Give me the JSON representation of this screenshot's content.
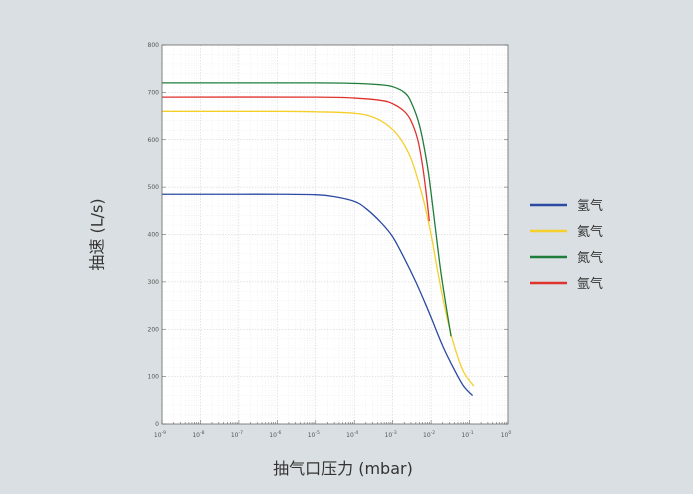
{
  "chart_data": {
    "type": "line",
    "title": "",
    "xlabel": "抽气口压力 (mbar)",
    "ylabel": "抽速 (L/s)",
    "x_scale": "log",
    "xlim": [
      1e-09,
      1
    ],
    "ylim": [
      0,
      800
    ],
    "x_ticks": [
      {
        "value": 1e-09,
        "base": "10",
        "exp": "-9"
      },
      {
        "value": 1e-08,
        "base": "10",
        "exp": "-8"
      },
      {
        "value": 1e-07,
        "base": "10",
        "exp": "-7"
      },
      {
        "value": 1e-06,
        "base": "10",
        "exp": "-6"
      },
      {
        "value": 1e-05,
        "base": "10",
        "exp": "-5"
      },
      {
        "value": 0.0001,
        "base": "10",
        "exp": "-4"
      },
      {
        "value": 0.001,
        "base": "10",
        "exp": "-3"
      },
      {
        "value": 0.01,
        "base": "10",
        "exp": "-2"
      },
      {
        "value": 0.1,
        "base": "10",
        "exp": "-1"
      },
      {
        "value": 1,
        "base": "10",
        "exp": "0"
      }
    ],
    "y_ticks": [
      0,
      100,
      200,
      300,
      400,
      500,
      600,
      700,
      800
    ],
    "grid": true,
    "legend_position": "right",
    "series": [
      {
        "name": "氢气",
        "color": "#2b4aa3",
        "points": [
          [
            1e-09,
            485
          ],
          [
            1e-08,
            485
          ],
          [
            1e-07,
            485
          ],
          [
            1e-06,
            485
          ],
          [
            1e-05,
            484
          ],
          [
            3e-05,
            480
          ],
          [
            0.0001,
            470
          ],
          [
            0.0002,
            455
          ],
          [
            0.0005,
            425
          ],
          [
            0.001,
            395
          ],
          [
            0.002,
            350
          ],
          [
            0.004,
            300
          ],
          [
            0.007,
            255
          ],
          [
            0.01,
            225
          ],
          [
            0.02,
            165
          ],
          [
            0.04,
            115
          ],
          [
            0.07,
            80
          ],
          [
            0.12,
            60
          ]
        ]
      },
      {
        "name": "氦气",
        "color": "#f5cf2c",
        "points": [
          [
            1e-09,
            660
          ],
          [
            1e-06,
            660
          ],
          [
            1e-05,
            659
          ],
          [
            0.0001,
            656
          ],
          [
            0.0003,
            648
          ],
          [
            0.0007,
            632
          ],
          [
            0.0015,
            605
          ],
          [
            0.003,
            560
          ],
          [
            0.006,
            480
          ],
          [
            0.01,
            400
          ],
          [
            0.015,
            320
          ],
          [
            0.025,
            230
          ],
          [
            0.04,
            165
          ],
          [
            0.07,
            110
          ],
          [
            0.13,
            80
          ]
        ]
      },
      {
        "name": "氮气",
        "color": "#1e7d3a",
        "points": [
          [
            1e-09,
            720
          ],
          [
            1e-05,
            720
          ],
          [
            0.0001,
            719
          ],
          [
            0.0005,
            716
          ],
          [
            0.001,
            712
          ],
          [
            0.002,
            700
          ],
          [
            0.003,
            680
          ],
          [
            0.005,
            630
          ],
          [
            0.008,
            545
          ],
          [
            0.011,
            460
          ],
          [
            0.014,
            390
          ],
          [
            0.018,
            320
          ],
          [
            0.025,
            245
          ],
          [
            0.033,
            185
          ]
        ]
      },
      {
        "name": "氩气",
        "color": "#e0322d",
        "points": [
          [
            1e-09,
            690
          ],
          [
            1e-05,
            690
          ],
          [
            0.0001,
            688
          ],
          [
            0.0005,
            683
          ],
          [
            0.001,
            676
          ],
          [
            0.002,
            660
          ],
          [
            0.003,
            640
          ],
          [
            0.0045,
            600
          ],
          [
            0.006,
            545
          ],
          [
            0.0075,
            485
          ],
          [
            0.009,
            428
          ]
        ]
      }
    ]
  }
}
